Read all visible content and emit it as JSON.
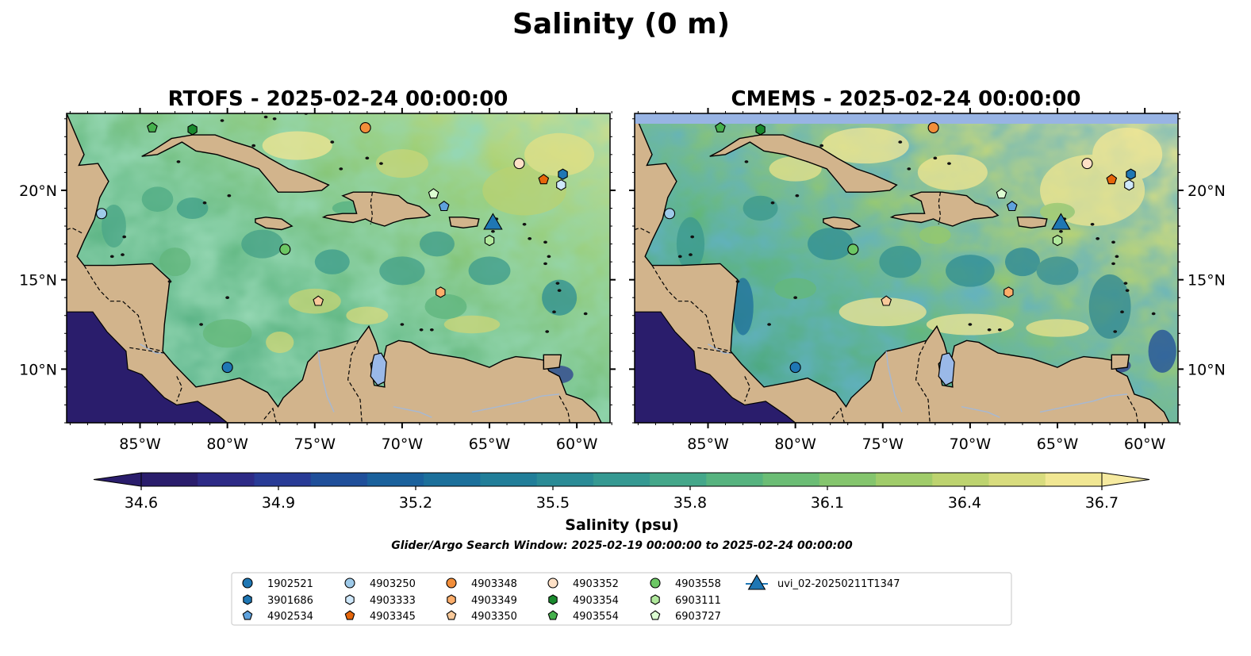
{
  "figure": {
    "title": "Salinity (0 m)",
    "colorbar_label": "Salinity (psu)",
    "search_window": "Glider/Argo Search Window: 2025-02-19 00:00:00 to 2025-02-24 00:00:00"
  },
  "panels": [
    {
      "title": "RTOFS - 2025-02-24 00:00:00",
      "top_band": false
    },
    {
      "title": "CMEMS - 2025-02-24 00:00:00",
      "top_band": true
    }
  ],
  "axes": {
    "x_ticks": [
      "85°W",
      "80°W",
      "75°W",
      "70°W",
      "65°W",
      "60°W"
    ],
    "x_tick_lons": [
      -85,
      -80,
      -75,
      -70,
      -65,
      -60
    ],
    "y_ticks": [
      "20°N",
      "15°N",
      "10°N"
    ],
    "y_tick_lats": [
      20,
      15,
      10
    ],
    "lon_range": [
      -89.2,
      -58.1
    ],
    "lat_range": [
      7.0,
      24.3
    ]
  },
  "colorbar": {
    "ticks": [
      "34.6",
      "34.9",
      "35.2",
      "35.5",
      "35.8",
      "36.1",
      "36.4",
      "36.7"
    ],
    "range": [
      34.6,
      36.7
    ],
    "extend": "both",
    "colors": [
      "#2a1d6c",
      "#2d2a86",
      "#283b96",
      "#1f4f9a",
      "#1a619c",
      "#1c709b",
      "#217e99",
      "#2a8b96",
      "#359992",
      "#44a78a",
      "#56b37f",
      "#6bbd75",
      "#84c56d",
      "#a0cc6a",
      "#bdd36f",
      "#d8dc7e",
      "#f1e793"
    ]
  },
  "legend": {
    "items": [
      {
        "label": "1902521",
        "marker": "circle",
        "color": "#1f77b4"
      },
      {
        "label": "3901686",
        "marker": "hexagon",
        "color": "#1f77b4"
      },
      {
        "label": "4902534",
        "marker": "pentagon",
        "color": "#5fa2dd"
      },
      {
        "label": "4903250",
        "marker": "circle",
        "color": "#9ecae9"
      },
      {
        "label": "4903333",
        "marker": "hexagon",
        "color": "#cfe8fb"
      },
      {
        "label": "4903345",
        "marker": "pentagon",
        "color": "#e6660b"
      },
      {
        "label": "4903348",
        "marker": "circle",
        "color": "#f28e3a"
      },
      {
        "label": "4903349",
        "marker": "hexagon",
        "color": "#fdae6b"
      },
      {
        "label": "4903350",
        "marker": "pentagon",
        "color": "#f8c99a"
      },
      {
        "label": "4903352",
        "marker": "circle",
        "color": "#fde0c6"
      },
      {
        "label": "4903354",
        "marker": "hexagon",
        "color": "#1a8a2e"
      },
      {
        "label": "4903554",
        "marker": "pentagon",
        "color": "#45b04c"
      },
      {
        "label": "4903558",
        "marker": "circle",
        "color": "#6cc764"
      },
      {
        "label": "6903111",
        "marker": "hexagon",
        "color": "#b0e89c"
      },
      {
        "label": "6903727",
        "marker": "pentagon",
        "color": "#dcfcd2"
      },
      {
        "label": "uvi_02-20250211T1347",
        "marker": "triangle",
        "color": "#1f77b4"
      }
    ]
  },
  "markers": [
    {
      "id": "1902521",
      "marker": "circle",
      "color": "#1f77b4",
      "lon": -80.0,
      "lat": 10.1
    },
    {
      "id": "3901686",
      "marker": "hexagon",
      "color": "#1f77b4",
      "lon": -60.8,
      "lat": 20.9
    },
    {
      "id": "4902534",
      "marker": "pentagon",
      "color": "#5fa2dd",
      "lon": -67.6,
      "lat": 19.1
    },
    {
      "id": "4903250",
      "marker": "circle",
      "color": "#9ecae9",
      "lon": -87.2,
      "lat": 18.7
    },
    {
      "id": "4903333",
      "marker": "hexagon",
      "color": "#cfe8fb",
      "lon": -60.9,
      "lat": 20.3
    },
    {
      "id": "4903345",
      "marker": "pentagon",
      "color": "#e6660b",
      "lon": -61.9,
      "lat": 20.6
    },
    {
      "id": "4903348",
      "marker": "circle",
      "color": "#f28e3a",
      "lon": -72.1,
      "lat": 23.5
    },
    {
      "id": "4903349",
      "marker": "hexagon",
      "color": "#fdae6b",
      "lon": -67.8,
      "lat": 14.3
    },
    {
      "id": "4903350",
      "marker": "pentagon",
      "color": "#f8c99a",
      "lon": -74.8,
      "lat": 13.8
    },
    {
      "id": "4903352",
      "marker": "circle",
      "color": "#fde0c6",
      "lon": -63.3,
      "lat": 21.5
    },
    {
      "id": "4903354",
      "marker": "hexagon",
      "color": "#1a8a2e",
      "lon": -82.0,
      "lat": 23.4
    },
    {
      "id": "4903554",
      "marker": "pentagon",
      "color": "#45b04c",
      "lon": -84.3,
      "lat": 23.5
    },
    {
      "id": "4903558",
      "marker": "circle",
      "color": "#6cc764",
      "lon": -76.7,
      "lat": 16.7
    },
    {
      "id": "6903111",
      "marker": "hexagon",
      "color": "#b0e89c",
      "lon": -65.0,
      "lat": 17.2
    },
    {
      "id": "6903727",
      "marker": "pentagon",
      "color": "#dcfcd2",
      "lon": -68.2,
      "lat": 19.8
    },
    {
      "id": "uvi_02-20250211T1347",
      "marker": "triangle",
      "color": "#1f77b4",
      "lon": -64.8,
      "lat": 18.2
    }
  ],
  "colors": {
    "land": "#d2b48c",
    "land_edge": "#000000",
    "deep_pacific": "#2a1d6c",
    "lake": "#9ab9e8",
    "river": "#a8b8d0",
    "top_band": "#98b4e4"
  }
}
